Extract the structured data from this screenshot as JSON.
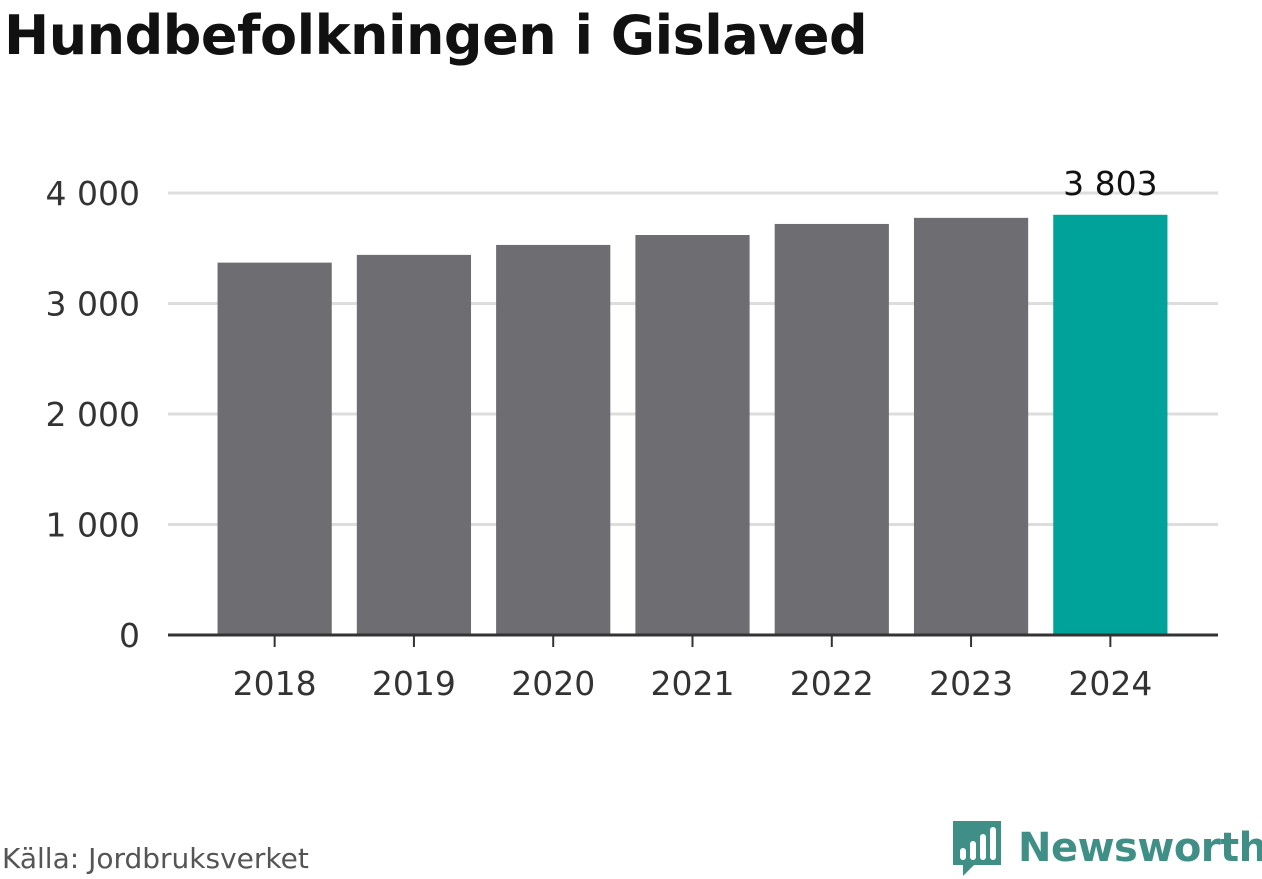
{
  "header": {
    "title": "Hundbefolkningen i Gislaved"
  },
  "footer": {
    "source": "Källa: Jordbruksverket",
    "brand": "Newsworthy",
    "brand_icon": "bar-chart-speech-icon"
  },
  "colors": {
    "bar": "#6e6d72",
    "highlight": "#00a39a",
    "grid": "#dddddd",
    "axis": "#333333",
    "brand": "#3f8f86"
  },
  "chart_data": {
    "type": "bar",
    "title": "Hundbefolkningen i Gislaved",
    "xlabel": "",
    "ylabel": "",
    "categories": [
      "2018",
      "2019",
      "2020",
      "2021",
      "2022",
      "2023",
      "2024"
    ],
    "values": [
      3370,
      3440,
      3530,
      3620,
      3720,
      3775,
      3803
    ],
    "highlight_index": 6,
    "data_labels": [
      {
        "index": 6,
        "text": "3 803"
      }
    ],
    "ylim": [
      0,
      4000
    ],
    "yticks": [
      {
        "value": 0,
        "label": "0"
      },
      {
        "value": 1000,
        "label": "1 000"
      },
      {
        "value": 2000,
        "label": "2 000"
      },
      {
        "value": 3000,
        "label": "3 000"
      },
      {
        "value": 4000,
        "label": "4 000"
      }
    ],
    "grid": true,
    "legend": "none"
  }
}
